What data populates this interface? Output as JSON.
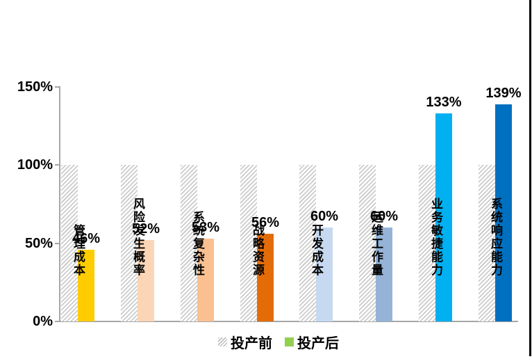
{
  "chart_data": {
    "type": "bar",
    "categories": [
      "管理成本",
      "风险发生概率",
      "系统复杂性",
      "战略资源",
      "开发成本",
      "运维工作量",
      "业务敏捷能力",
      "系统响应能力"
    ],
    "series": [
      {
        "name": "投产前",
        "values": [
          100,
          100,
          100,
          100,
          100,
          100,
          100,
          100
        ],
        "style": "hatched",
        "hatch_color": "#C9C9C9",
        "data_labels_shown": false
      },
      {
        "name": "投产后",
        "values": [
          46,
          52,
          53,
          56,
          60,
          60,
          133,
          139
        ],
        "value_labels": [
          "46%",
          "52%",
          "53%",
          "56%",
          "60%",
          "60%",
          "133%",
          "139%"
        ],
        "bar_colors": [
          "#FFCC00",
          "#FBD5B5",
          "#FAC090",
          "#E36C09",
          "#C6D9F1",
          "#95B3D7",
          "#00B0F0",
          "#0070C0"
        ],
        "data_labels_shown": true
      }
    ],
    "title": "",
    "xlabel": "",
    "ylabel": "",
    "y_ticks": [
      "0%",
      "50%",
      "100%",
      "150%"
    ],
    "y_tick_values": [
      0,
      50,
      100,
      150
    ],
    "ylim": [
      0,
      150
    ],
    "grid": false,
    "axis_color": "#A6A6A6",
    "legend_position": "bottom",
    "legend": [
      {
        "label": "投产前",
        "swatch": "hatched"
      },
      {
        "label": "投产后",
        "swatch": "solid",
        "swatch_color": "#92D050"
      }
    ]
  }
}
